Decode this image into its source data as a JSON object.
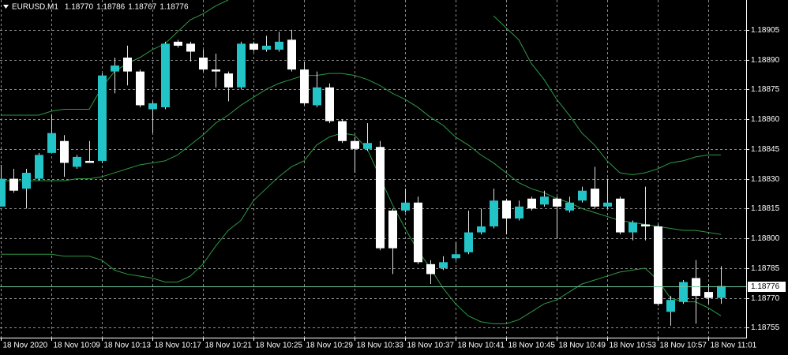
{
  "chart_data": {
    "type": "candlestick",
    "symbol": "EURUSD,M1",
    "legend_ohlc": [
      "1.18770",
      "1.18786",
      "1.18767",
      "1.18776"
    ],
    "categories": [
      "18 Nov 2020",
      null,
      null,
      null,
      "18 Nov 10:09",
      null,
      null,
      null,
      "18 Nov 10:13",
      null,
      null,
      null,
      "18 Nov 10:17",
      null,
      null,
      null,
      "18 Nov 10:21",
      null,
      null,
      null,
      "18 Nov 10:25",
      null,
      null,
      null,
      "18 Nov 10:29",
      null,
      null,
      null,
      "18 Nov 10:33",
      null,
      null,
      null,
      "18 Nov 10:37",
      null,
      null,
      null,
      "18 Nov 10:41",
      null,
      null,
      null,
      "18 Nov 10:45",
      null,
      null,
      null,
      "18 Nov 10:49",
      null,
      null,
      null,
      "18 Nov 10:53",
      null,
      null,
      null,
      "18 Nov 10:57",
      null,
      null,
      null,
      "18 Nov 11:01",
      null
    ],
    "open": [
      1.18816,
      1.1883,
      1.18825,
      1.1883,
      1.18843,
      1.18849,
      1.18836,
      1.18839,
      1.18839,
      1.18884,
      1.18891,
      1.18884,
      1.18865,
      1.18866,
      1.18899,
      1.18898,
      1.18891,
      1.18885,
      1.18883,
      1.18876,
      1.18898,
      1.18895,
      1.18895,
      1.189,
      1.18885,
      1.18867,
      1.18876,
      1.18859,
      1.18849,
      1.18845,
      1.18846,
      1.18814,
      1.18814,
      1.18818,
      1.18787,
      1.18785,
      1.1879,
      1.18793,
      1.18803,
      1.18806,
      1.18819,
      1.1881,
      1.1882,
      1.18817,
      1.1882,
      1.18814,
      1.18819,
      1.18825,
      1.18816,
      1.1882,
      1.18803,
      1.18807,
      1.18806,
      1.18763,
      1.18768,
      1.1878,
      1.18773,
      1.1877
    ],
    "high": [
      1.18837,
      1.18835,
      1.18835,
      1.18843,
      1.18862,
      1.18852,
      1.18842,
      1.18849,
      1.18883,
      1.18891,
      1.18897,
      1.18885,
      1.18869,
      1.18899,
      1.189,
      1.18899,
      1.18895,
      1.18893,
      1.18884,
      1.18899,
      1.18899,
      1.18902,
      1.18904,
      1.18905,
      1.18889,
      1.18884,
      1.18878,
      1.1886,
      1.18851,
      1.18858,
      1.18849,
      1.18815,
      1.18825,
      1.18821,
      1.18789,
      1.18791,
      1.18798,
      1.18814,
      1.18815,
      1.18825,
      1.1882,
      1.18819,
      1.18821,
      1.18824,
      1.18821,
      1.18821,
      1.18826,
      1.18836,
      1.1883,
      1.18821,
      1.18809,
      1.18826,
      1.18807,
      1.18771,
      1.18779,
      1.18789,
      1.18777,
      1.18786
    ],
    "low": [
      1.18816,
      1.18823,
      1.18815,
      1.18829,
      1.18843,
      1.18831,
      1.18835,
      1.18838,
      1.18838,
      1.18873,
      1.18877,
      1.18866,
      1.18853,
      1.18865,
      1.18896,
      1.18889,
      1.18884,
      1.18876,
      1.18869,
      1.18875,
      1.18894,
      1.18894,
      1.18894,
      1.18884,
      1.18867,
      1.18866,
      1.18858,
      1.18848,
      1.18833,
      1.18844,
      1.18794,
      1.18782,
      1.18813,
      1.18787,
      1.18777,
      1.18784,
      1.18789,
      1.18792,
      1.18802,
      1.18805,
      1.18802,
      1.18809,
      1.18814,
      1.18816,
      1.188,
      1.18813,
      1.18818,
      1.18815,
      1.18815,
      1.18802,
      1.18799,
      1.18799,
      1.18766,
      1.18756,
      1.18767,
      1.18757,
      1.18767,
      1.18767
    ],
    "close": [
      1.1883,
      1.18824,
      1.18833,
      1.18842,
      1.18853,
      1.18838,
      1.18841,
      1.18838,
      1.18882,
      1.18887,
      1.18884,
      1.18867,
      1.18868,
      1.18898,
      1.18897,
      1.18894,
      1.18885,
      1.18884,
      1.18876,
      1.18898,
      1.18895,
      1.18897,
      1.18899,
      1.18885,
      1.18868,
      1.18876,
      1.18859,
      1.18849,
      1.18845,
      1.18848,
      1.18795,
      1.18795,
      1.18818,
      1.18788,
      1.18782,
      1.18788,
      1.18792,
      1.18803,
      1.18806,
      1.18819,
      1.1881,
      1.18816,
      1.18815,
      1.18821,
      1.18816,
      1.18818,
      1.18824,
      1.18816,
      1.18818,
      1.18803,
      1.18808,
      1.18806,
      1.18767,
      1.18769,
      1.18778,
      1.18771,
      1.1877,
      1.18776
    ],
    "up_color": "#22c4c8",
    "down_color": "#ffffff",
    "wick_color": "#e0e0e0",
    "band_color": "#2f9a44",
    "bands": [
      {
        "values": [
          1.18862,
          1.18862,
          1.18862,
          1.18862,
          1.18864,
          1.18865,
          1.18865,
          1.18865,
          1.18876,
          1.18884,
          1.18888,
          1.18891,
          1.18895,
          1.18898,
          1.18904,
          1.1891,
          1.18913,
          1.18917,
          1.1892,
          null,
          null,
          null,
          null,
          null,
          null,
          null,
          null,
          null,
          null,
          null,
          null,
          null,
          null,
          null,
          null,
          null,
          null,
          null,
          null,
          1.18912,
          1.18906,
          1.189,
          1.18888,
          1.1888,
          1.1887,
          1.18862,
          1.18853,
          1.18847,
          1.18839,
          1.18833,
          1.18832,
          1.18833,
          1.18835,
          1.18838,
          1.18839,
          1.18841,
          1.18842,
          1.18842
        ]
      },
      {
        "values": [
          1.18829,
          1.18829,
          1.18829,
          1.18829,
          1.18829,
          1.18829,
          1.1883,
          1.1883,
          1.18831,
          1.18833,
          1.18835,
          1.18837,
          1.18838,
          1.18839,
          1.18842,
          1.18847,
          1.18852,
          1.18858,
          1.18862,
          1.18867,
          1.18871,
          1.18875,
          1.18878,
          1.1888,
          1.18882,
          1.18882,
          1.18883,
          1.18883,
          1.18882,
          1.1888,
          1.18877,
          1.18873,
          1.1887,
          1.18866,
          1.18861,
          1.18857,
          1.18851,
          1.18847,
          1.18842,
          1.18838,
          1.18833,
          1.18828,
          1.18825,
          1.18823,
          1.1882,
          1.18818,
          1.18815,
          1.18813,
          1.18811,
          1.18809,
          1.18808,
          1.18807,
          1.18806,
          1.18805,
          1.18804,
          1.18804,
          1.18803,
          1.18802
        ]
      },
      {
        "values": [
          1.18792,
          1.18792,
          1.18792,
          1.18792,
          1.18792,
          1.18791,
          1.18791,
          1.18791,
          1.18789,
          1.18784,
          1.18782,
          1.18781,
          1.1878,
          1.18778,
          1.18778,
          1.18781,
          1.18787,
          1.18796,
          1.18804,
          1.18809,
          1.18819,
          1.18825,
          1.18831,
          1.18836,
          1.18839,
          1.18847,
          1.18851,
          1.18853,
          1.18852,
          1.18845,
          1.18831,
          1.18817,
          1.18805,
          1.18794,
          1.18785,
          1.18775,
          1.18767,
          1.18761,
          1.18758,
          1.18757,
          1.18757,
          1.18759,
          1.18763,
          1.18767,
          1.18769,
          1.18773,
          1.18777,
          1.18779,
          1.18781,
          1.18783,
          1.18784,
          1.18785,
          1.18779,
          1.1877,
          1.18768,
          1.18768,
          1.18765,
          1.18761
        ]
      }
    ],
    "last_price": {
      "value": 1.18776,
      "label": "1.18776"
    },
    "last_price_color": "#6fc9a0",
    "ylim": [
      1.1875,
      1.1892
    ],
    "yticks": [
      1.18755,
      {
        "value": 1.1877,
        "label": "1.18770"
      },
      1.18785,
      {
        "value": 1.188,
        "label": "1.18800"
      },
      1.18815,
      {
        "value": 1.1883,
        "label": "1.18830"
      },
      1.18845,
      {
        "value": 1.1886,
        "label": "1.18860"
      },
      1.18875,
      {
        "value": 1.1889,
        "label": "1.18890"
      },
      1.18905
    ],
    "grid": true,
    "grid_color": "#8c8c8c"
  }
}
